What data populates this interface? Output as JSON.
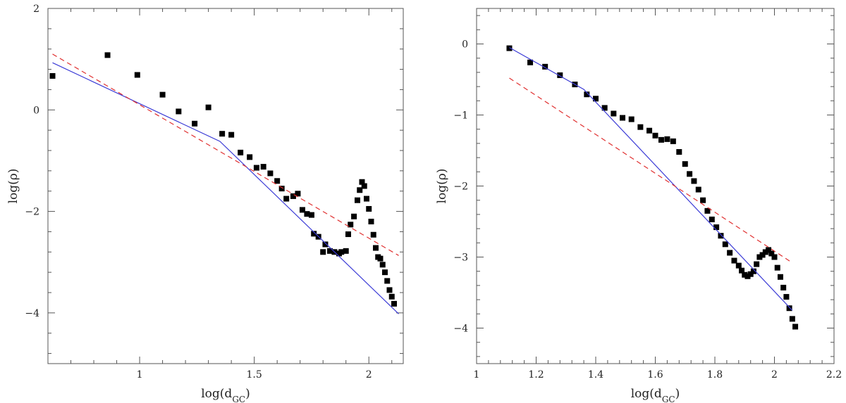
{
  "chart_data": [
    {
      "type": "scatter",
      "xlabel": "log(d_GC)",
      "ylabel": "log(ρ)",
      "xlim": [
        0.6,
        2.15
      ],
      "ylim": [
        -5,
        2
      ],
      "xticks": [
        1,
        1.5,
        2
      ],
      "xtick_labels": [
        "1",
        "1.5",
        "2"
      ],
      "yticks": [
        2,
        0,
        -2,
        -4
      ],
      "ytick_labels": [
        "2",
        "0",
        "−2",
        "−4"
      ],
      "grid": false,
      "series": [
        {
          "kind": "points",
          "color": "#000000",
          "points": [
            [
              0.62,
              0.67
            ],
            [
              0.86,
              1.08
            ],
            [
              0.99,
              0.69
            ],
            [
              1.1,
              0.3
            ],
            [
              1.17,
              -0.03
            ],
            [
              1.24,
              -0.27
            ],
            [
              1.3,
              0.05
            ],
            [
              1.36,
              -0.47
            ],
            [
              1.4,
              -0.49
            ],
            [
              1.44,
              -0.84
            ],
            [
              1.48,
              -0.93
            ],
            [
              1.51,
              -1.14
            ],
            [
              1.54,
              -1.12
            ],
            [
              1.57,
              -1.25
            ],
            [
              1.6,
              -1.4
            ],
            [
              1.62,
              -1.55
            ],
            [
              1.64,
              -1.75
            ],
            [
              1.67,
              -1.7
            ],
            [
              1.69,
              -1.65
            ],
            [
              1.71,
              -1.97
            ],
            [
              1.73,
              -2.05
            ],
            [
              1.75,
              -2.07
            ],
            [
              1.76,
              -2.44
            ],
            [
              1.78,
              -2.5
            ],
            [
              1.8,
              -2.8
            ],
            [
              1.81,
              -2.65
            ],
            [
              1.83,
              -2.78
            ],
            [
              1.85,
              -2.8
            ],
            [
              1.87,
              -2.83
            ],
            [
              1.88,
              -2.8
            ],
            [
              1.9,
              -2.78
            ],
            [
              1.91,
              -2.45
            ],
            [
              1.92,
              -2.26
            ],
            [
              1.935,
              -2.1
            ],
            [
              1.95,
              -1.78
            ],
            [
              1.96,
              -1.58
            ],
            [
              1.97,
              -1.42
            ],
            [
              1.98,
              -1.5
            ],
            [
              1.99,
              -1.75
            ],
            [
              2.0,
              -1.95
            ],
            [
              2.01,
              -2.2
            ],
            [
              2.02,
              -2.46
            ],
            [
              2.03,
              -2.72
            ],
            [
              2.04,
              -2.9
            ],
            [
              2.05,
              -2.93
            ],
            [
              2.06,
              -3.05
            ],
            [
              2.07,
              -3.2
            ],
            [
              2.08,
              -3.37
            ],
            [
              2.09,
              -3.55
            ],
            [
              2.1,
              -3.68
            ],
            [
              2.11,
              -3.82
            ]
          ]
        },
        {
          "kind": "line",
          "style": "solid",
          "color": "#3b3bd6",
          "points": [
            [
              0.62,
              0.93
            ],
            [
              1.35,
              -0.62
            ],
            [
              2.13,
              -4.02
            ]
          ]
        },
        {
          "kind": "line",
          "style": "dashed",
          "color": "#e03030",
          "points": [
            [
              0.62,
              1.1
            ],
            [
              2.13,
              -2.87
            ]
          ]
        }
      ]
    },
    {
      "type": "scatter",
      "xlabel": "log(d_GC)",
      "ylabel": "log(ρ)",
      "xlim": [
        1.0,
        2.2
      ],
      "ylim": [
        -4.5,
        0.5
      ],
      "xticks": [
        1,
        1.2,
        1.4,
        1.6,
        1.8,
        2,
        2.2
      ],
      "xtick_labels": [
        "1",
        "1.2",
        "1.4",
        "1.6",
        "1.8",
        "2",
        "2.2"
      ],
      "yticks": [
        0,
        -1,
        -2,
        -3,
        -4
      ],
      "ytick_labels": [
        "0",
        "−1",
        "−2",
        "−3",
        "−4"
      ],
      "grid": false,
      "series": [
        {
          "kind": "points",
          "color": "#000000",
          "points": [
            [
              1.11,
              -0.06
            ],
            [
              1.18,
              -0.26
            ],
            [
              1.23,
              -0.32
            ],
            [
              1.28,
              -0.44
            ],
            [
              1.33,
              -0.57
            ],
            [
              1.37,
              -0.71
            ],
            [
              1.4,
              -0.77
            ],
            [
              1.43,
              -0.9
            ],
            [
              1.46,
              -0.98
            ],
            [
              1.49,
              -1.04
            ],
            [
              1.52,
              -1.06
            ],
            [
              1.55,
              -1.17
            ],
            [
              1.58,
              -1.22
            ],
            [
              1.6,
              -1.29
            ],
            [
              1.62,
              -1.35
            ],
            [
              1.64,
              -1.34
            ],
            [
              1.66,
              -1.37
            ],
            [
              1.68,
              -1.52
            ],
            [
              1.7,
              -1.69
            ],
            [
              1.715,
              -1.83
            ],
            [
              1.73,
              -1.93
            ],
            [
              1.745,
              -2.05
            ],
            [
              1.76,
              -2.2
            ],
            [
              1.775,
              -2.35
            ],
            [
              1.79,
              -2.47
            ],
            [
              1.805,
              -2.58
            ],
            [
              1.82,
              -2.7
            ],
            [
              1.835,
              -2.82
            ],
            [
              1.85,
              -2.94
            ],
            [
              1.865,
              -3.05
            ],
            [
              1.88,
              -3.12
            ],
            [
              1.89,
              -3.19
            ],
            [
              1.9,
              -3.25
            ],
            [
              1.91,
              -3.27
            ],
            [
              1.92,
              -3.24
            ],
            [
              1.93,
              -3.2
            ],
            [
              1.94,
              -3.1
            ],
            [
              1.95,
              -3.0
            ],
            [
              1.96,
              -2.97
            ],
            [
              1.97,
              -2.93
            ],
            [
              1.98,
              -2.9
            ],
            [
              1.99,
              -2.95
            ],
            [
              2.0,
              -3.0
            ],
            [
              2.01,
              -3.15
            ],
            [
              2.02,
              -3.28
            ],
            [
              2.03,
              -3.43
            ],
            [
              2.04,
              -3.56
            ],
            [
              2.05,
              -3.72
            ],
            [
              2.06,
              -3.87
            ],
            [
              2.07,
              -3.98
            ]
          ]
        },
        {
          "kind": "line",
          "style": "solid",
          "color": "#3b3bd6",
          "points": [
            [
              1.11,
              -0.05
            ],
            [
              1.36,
              -0.64
            ],
            [
              2.06,
              -3.75
            ]
          ]
        },
        {
          "kind": "line",
          "style": "dashed",
          "color": "#e03030",
          "points": [
            [
              1.11,
              -0.48
            ],
            [
              2.06,
              -3.08
            ]
          ]
        }
      ]
    }
  ]
}
